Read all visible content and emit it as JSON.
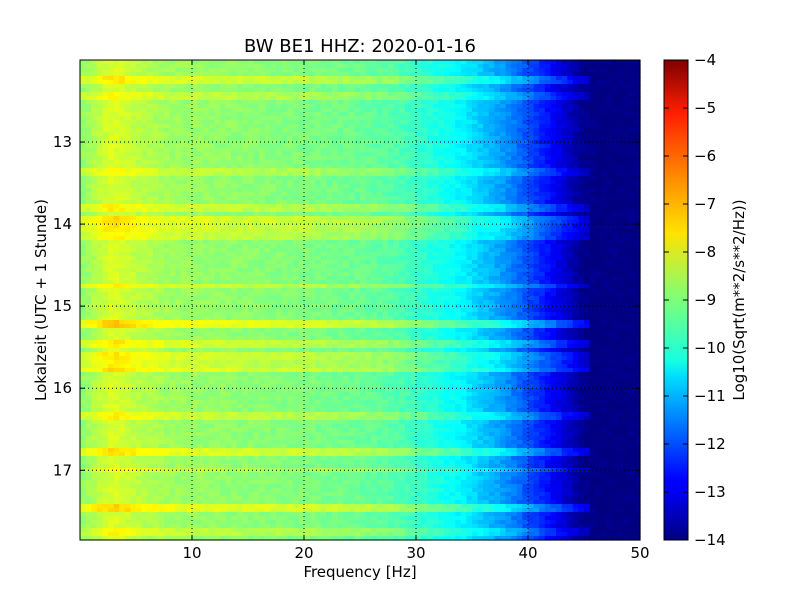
{
  "chart_data": {
    "type": "heatmap",
    "title": "BW BE1 HHZ: 2020-01-16",
    "xlabel": "Frequency [Hz]",
    "ylabel": "Lokalzeit (UTC + 1 Stunde)",
    "xlim": [
      0,
      50
    ],
    "ylim": [
      12.0,
      17.85
    ],
    "y_inverted": true,
    "grid": true,
    "x_ticks": [
      10,
      20,
      30,
      40,
      50
    ],
    "x_tick_labels": [
      "10",
      "20",
      "30",
      "40",
      "50"
    ],
    "y_ticks": [
      13,
      14,
      15,
      16,
      17
    ],
    "y_tick_labels": [
      "13",
      "14",
      "15",
      "16",
      "17"
    ],
    "colorbar": {
      "label": "Log10(Sqrt(m**2/s**2/Hz))",
      "range": [
        -14,
        -4
      ],
      "ticks": [
        -4,
        -5,
        -6,
        -7,
        -8,
        -9,
        -10,
        -11,
        -12,
        -13,
        -14
      ],
      "tick_labels": [
        "−4",
        "−5",
        "−6",
        "−7",
        "−8",
        "−9",
        "−10",
        "−11",
        "−12",
        "−13",
        "−14"
      ],
      "colormap": "jet"
    },
    "frequency_profile": {
      "frequency_hz": [
        0,
        1,
        2,
        3,
        5,
        8,
        12,
        16,
        20,
        25,
        28,
        30,
        32,
        34,
        36,
        38,
        40,
        42,
        44,
        45,
        46,
        50
      ],
      "value": [
        -8.9,
        -8.6,
        -8.3,
        -8.1,
        -8.4,
        -8.7,
        -8.8,
        -8.9,
        -9.0,
        -9.2,
        -9.4,
        -9.7,
        -10.0,
        -10.3,
        -10.8,
        -11.3,
        -12.0,
        -12.7,
        -13.5,
        -13.9,
        -14.0,
        -14.0
      ]
    },
    "bright_time_bands": [
      {
        "time": 12.25,
        "delta": 0.6
      },
      {
        "time": 12.45,
        "delta": 0.4
      },
      {
        "time": 13.35,
        "delta": 0.4
      },
      {
        "time": 13.8,
        "delta": 0.5
      },
      {
        "time": 13.95,
        "delta": 0.7
      },
      {
        "time": 14.05,
        "delta": 0.6
      },
      {
        "time": 14.15,
        "delta": 0.5
      },
      {
        "time": 14.75,
        "delta": 0.5
      },
      {
        "time": 15.2,
        "delta": 0.9
      },
      {
        "time": 15.45,
        "delta": 0.6
      },
      {
        "time": 15.6,
        "delta": 0.6
      },
      {
        "time": 15.7,
        "delta": 0.5
      },
      {
        "time": 15.78,
        "delta": 0.7
      },
      {
        "time": 16.35,
        "delta": 0.5
      },
      {
        "time": 16.78,
        "delta": 0.7
      },
      {
        "time": 17.0,
        "delta": 0.4
      },
      {
        "time": 17.45,
        "delta": 0.8
      },
      {
        "time": 17.75,
        "delta": 0.4
      }
    ]
  }
}
